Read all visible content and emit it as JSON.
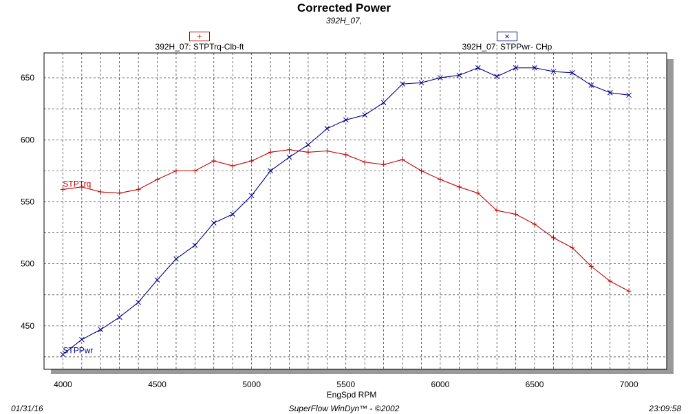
{
  "header": {
    "title": "Corrected Power",
    "subtitle": "392H_07,"
  },
  "legend": {
    "torque": {
      "symbol": "+",
      "label": "392H_07: STPTrq-Clb-ft"
    },
    "power": {
      "symbol": "×",
      "label": "392H_07: STPPwr- CHp"
    }
  },
  "footer": {
    "date": "01/31/16",
    "software": "SuperFlow WinDyn™ - ©2002",
    "time": "23:09:58"
  },
  "chart_data": {
    "type": "line",
    "title": "Corrected Power",
    "subtitle": "392H_07,",
    "xlabel": "EngSpd  RPM",
    "ylabel": "",
    "xlim": [
      3900,
      7200
    ],
    "ylim": [
      415,
      670
    ],
    "xticks": [
      4000,
      4500,
      5000,
      5500,
      6000,
      6500,
      7000
    ],
    "yticks": [
      450,
      500,
      550,
      600,
      650
    ],
    "grid": true,
    "legend_position": "top",
    "x": [
      4000,
      4100,
      4200,
      4300,
      4400,
      4500,
      4600,
      4700,
      4800,
      4900,
      5000,
      5100,
      5200,
      5300,
      5400,
      5500,
      5600,
      5700,
      5800,
      5900,
      6000,
      6100,
      6200,
      6300,
      6400,
      6500,
      6600,
      6700,
      6800,
      6900,
      7000
    ],
    "series": [
      {
        "name": "392H_07: STPTrq-Clb-ft",
        "label": "STPTrq",
        "color": "#c00000",
        "marker": "+",
        "values": [
          560,
          562,
          558,
          557,
          560,
          568,
          575,
          575,
          583,
          579,
          583,
          590,
          592,
          590,
          591,
          588,
          582,
          580,
          584,
          575,
          568,
          562,
          557,
          543,
          540,
          532,
          521,
          513,
          498,
          486,
          478
        ]
      },
      {
        "name": "392H_07: STPPwr- CHp",
        "label": "STPPwr",
        "color": "#00008b",
        "marker": "x",
        "values": [
          427,
          439,
          447,
          457,
          469,
          487,
          504,
          515,
          533,
          540,
          555,
          575,
          586,
          596,
          609,
          616,
          620,
          630,
          645,
          646,
          650,
          652,
          658,
          651,
          658,
          658,
          655,
          654,
          644,
          638,
          636
        ]
      }
    ]
  }
}
